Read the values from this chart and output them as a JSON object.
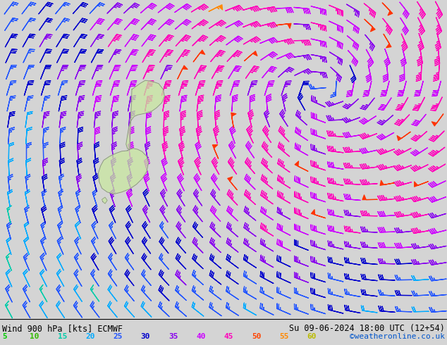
{
  "title_left": "Wind 900 hPa [kts] ECMWF",
  "title_right": "Su 09-06-2024 18:00 UTC (12+54)",
  "credit": "©weatheronline.co.uk",
  "bg_color": "#d4d4d4",
  "bottom_bg": "#ffffff",
  "legend_values": [
    5,
    10,
    15,
    20,
    25,
    30,
    35,
    40,
    45,
    50,
    55,
    60
  ],
  "legend_colors": [
    "#00cc00",
    "#33bb00",
    "#00ccaa",
    "#00aaff",
    "#2255ff",
    "#0000cc",
    "#8800ee",
    "#cc00ff",
    "#ff00bb",
    "#ff4400",
    "#ff8800",
    "#bbbb00"
  ],
  "figsize": [
    6.34,
    4.9
  ],
  "dpi": 100,
  "nx": 26,
  "ny": 20
}
